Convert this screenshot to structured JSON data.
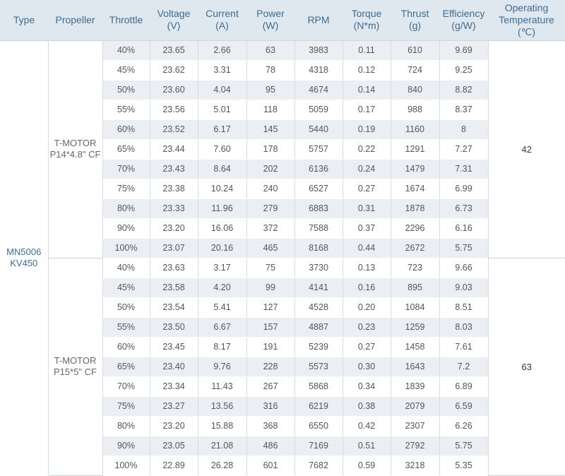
{
  "headers": [
    "Type",
    "Propeller",
    "Throttle",
    "Voltage\n(V)",
    "Current\n(A)",
    "Power\n(W)",
    "RPM",
    "Torque\n(N*m)",
    "Thrust\n(g)",
    "Efficiency\n(g/W)",
    "Operating\nTemperature\n(℃)"
  ],
  "motor_type": "MN5006\nKV450",
  "groups": [
    {
      "propeller": "T-MOTOR\nP14*4.8\" CF",
      "temperature": "42",
      "rows": [
        [
          "40%",
          "23.65",
          "2.66",
          "63",
          "3983",
          "0.11",
          "610",
          "9.69"
        ],
        [
          "45%",
          "23.62",
          "3.31",
          "78",
          "4318",
          "0.12",
          "724",
          "9.25"
        ],
        [
          "50%",
          "23.60",
          "4.04",
          "95",
          "4674",
          "0.14",
          "840",
          "8.82"
        ],
        [
          "55%",
          "23.56",
          "5.01",
          "118",
          "5059",
          "0.17",
          "988",
          "8.37"
        ],
        [
          "60%",
          "23.52",
          "6.17",
          "145",
          "5440",
          "0.19",
          "1160",
          "8"
        ],
        [
          "65%",
          "23.44",
          "7.60",
          "178",
          "5757",
          "0.22",
          "1291",
          "7.27"
        ],
        [
          "70%",
          "23.43",
          "8.64",
          "202",
          "6136",
          "0.24",
          "1479",
          "7.31"
        ],
        [
          "75%",
          "23.38",
          "10.24",
          "240",
          "6527",
          "0.27",
          "1674",
          "6.99"
        ],
        [
          "80%",
          "23.33",
          "11.96",
          "279",
          "6883",
          "0.31",
          "1878",
          "6.73"
        ],
        [
          "90%",
          "23.20",
          "16.06",
          "372",
          "7588",
          "0.37",
          "2296",
          "6.16"
        ],
        [
          "100%",
          "23.07",
          "20.16",
          "465",
          "8168",
          "0.44",
          "2672",
          "5.75"
        ]
      ]
    },
    {
      "propeller": "T-MOTOR\nP15*5\" CF",
      "temperature": "63",
      "rows": [
        [
          "40%",
          "23.63",
          "3.17",
          "75",
          "3730",
          "0.13",
          "723",
          "9.66"
        ],
        [
          "45%",
          "23.58",
          "4.20",
          "99",
          "4141",
          "0.16",
          "895",
          "9.03"
        ],
        [
          "50%",
          "23.54",
          "5.41",
          "127",
          "4528",
          "0.20",
          "1084",
          "8.51"
        ],
        [
          "55%",
          "23.50",
          "6.67",
          "157",
          "4887",
          "0.23",
          "1259",
          "8.03"
        ],
        [
          "60%",
          "23.45",
          "8.17",
          "191",
          "5239",
          "0.27",
          "1458",
          "7.61"
        ],
        [
          "65%",
          "23.40",
          "9.76",
          "228",
          "5573",
          "0.30",
          "1643",
          "7.2"
        ],
        [
          "70%",
          "23.34",
          "11.43",
          "267",
          "5868",
          "0.34",
          "1839",
          "6.89"
        ],
        [
          "75%",
          "23.27",
          "13.56",
          "316",
          "6219",
          "0.38",
          "2079",
          "6.59"
        ],
        [
          "80%",
          "23.20",
          "15.88",
          "368",
          "6550",
          "0.42",
          "2307",
          "6.26"
        ],
        [
          "90%",
          "23.05",
          "21.08",
          "486",
          "7169",
          "0.51",
          "2792",
          "5.75"
        ],
        [
          "100%",
          "22.89",
          "26.28",
          "601",
          "7682",
          "0.59",
          "3218",
          "5.35"
        ]
      ]
    }
  ]
}
